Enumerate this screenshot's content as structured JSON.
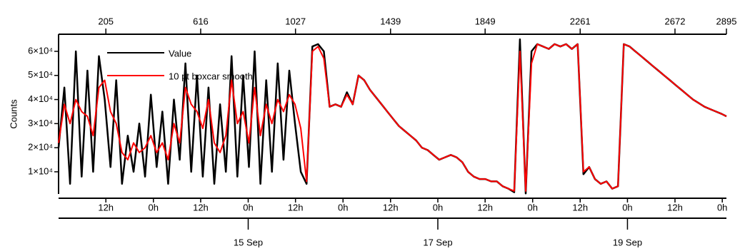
{
  "chart_data": {
    "type": "line",
    "y_label": "Counts",
    "legend": "top-left",
    "xlim": [
      0,
      2895
    ],
    "ylim": [
      800,
      67100
    ],
    "yticks": [
      {
        "value": 10000,
        "label": "1×10⁴"
      },
      {
        "value": 20000,
        "label": "2×10⁴"
      },
      {
        "value": 30000,
        "label": "3×10⁴"
      },
      {
        "value": 40000,
        "label": "4×10⁴"
      },
      {
        "value": 50000,
        "label": "5×10⁴"
      },
      {
        "value": 60000,
        "label": "6×10⁴"
      }
    ],
    "x2ticks": [
      205,
      616,
      1027,
      1439,
      1849,
      2261,
      2672,
      2895
    ],
    "xticks": [
      {
        "value": 205,
        "label": "12h"
      },
      {
        "value": 411,
        "label": "0h"
      },
      {
        "value": 616,
        "label": "12h"
      },
      {
        "value": 822,
        "label": "0h"
      },
      {
        "value": 1027,
        "label": "12h"
      },
      {
        "value": 1233,
        "label": "0h"
      },
      {
        "value": 1439,
        "label": "12h"
      },
      {
        "value": 1644,
        "label": "0h"
      },
      {
        "value": 1849,
        "label": "12h"
      },
      {
        "value": 2055,
        "label": "0h"
      },
      {
        "value": 2261,
        "label": "12h"
      },
      {
        "value": 2466,
        "label": "0h"
      },
      {
        "value": 2672,
        "label": "12h"
      },
      {
        "value": 2877,
        "label": "0h"
      }
    ],
    "date_ticks": [
      {
        "value": 822,
        "label": "15 Sep"
      },
      {
        "value": 1644,
        "label": "17 Sep"
      },
      {
        "value": 2466,
        "label": "19 Sep"
      }
    ],
    "x": [
      0,
      25,
      50,
      75,
      100,
      125,
      150,
      175,
      200,
      225,
      250,
      275,
      300,
      325,
      350,
      375,
      400,
      425,
      450,
      475,
      500,
      525,
      550,
      575,
      600,
      625,
      650,
      675,
      700,
      725,
      750,
      775,
      800,
      825,
      850,
      875,
      900,
      925,
      950,
      975,
      1000,
      1025,
      1050,
      1075,
      1100,
      1125,
      1150,
      1175,
      1200,
      1225,
      1250,
      1275,
      1300,
      1325,
      1350,
      1375,
      1400,
      1425,
      1450,
      1475,
      1500,
      1525,
      1550,
      1575,
      1600,
      1625,
      1650,
      1675,
      1700,
      1725,
      1750,
      1775,
      1800,
      1825,
      1850,
      1875,
      1900,
      1925,
      1950,
      1975,
      2000,
      2025,
      2050,
      2075,
      2100,
      2125,
      2150,
      2175,
      2200,
      2225,
      2250,
      2275,
      2300,
      2325,
      2350,
      2375,
      2400,
      2425,
      2450,
      2475,
      2500,
      2525,
      2550,
      2575,
      2600,
      2625,
      2650,
      2675,
      2700,
      2725,
      2750,
      2775,
      2800,
      2825,
      2850,
      2875,
      2895
    ],
    "series": [
      {
        "name": "Value",
        "color": "#000000",
        "values": [
          20000,
          45000,
          5000,
          60000,
          8000,
          52000,
          10000,
          58000,
          40000,
          12000,
          48000,
          5000,
          25000,
          10000,
          30000,
          8000,
          42000,
          12000,
          35000,
          5000,
          40000,
          15000,
          55000,
          10000,
          50000,
          8000,
          45000,
          5000,
          38000,
          10000,
          58000,
          8000,
          50000,
          12000,
          60000,
          5000,
          48000,
          10000,
          55000,
          15000,
          52000,
          30000,
          10000,
          5000,
          62000,
          63000,
          60000,
          37000,
          38000,
          37000,
          43000,
          38000,
          50000,
          48000,
          44000,
          41000,
          38000,
          35000,
          32000,
          29000,
          27000,
          25000,
          23000,
          20000,
          19000,
          17000,
          15000,
          16000,
          17000,
          16000,
          14000,
          10000,
          8000,
          7000,
          7000,
          6000,
          6000,
          4000,
          3000,
          1500,
          65000,
          1000,
          60000,
          63000,
          62000,
          61000,
          63000,
          62000,
          63000,
          61000,
          63000,
          9000,
          12000,
          7000,
          5000,
          6000,
          3000,
          4000,
          63000,
          62000,
          60000,
          58000,
          56000,
          54000,
          52000,
          50000,
          48000,
          46000,
          44000,
          42000,
          40000,
          38500,
          37000,
          36000,
          35000,
          34000,
          33000
        ]
      },
      {
        "name": "10 pt boxcar smooth",
        "color": "#ff0000",
        "values": [
          22000,
          38000,
          30000,
          40000,
          35000,
          33000,
          25000,
          45000,
          48000,
          35000,
          30000,
          18000,
          15000,
          22000,
          18000,
          20000,
          25000,
          18000,
          22000,
          15000,
          30000,
          22000,
          45000,
          38000,
          35000,
          28000,
          40000,
          22000,
          18000,
          25000,
          48000,
          30000,
          35000,
          22000,
          45000,
          25000,
          38000,
          30000,
          40000,
          35000,
          42000,
          38000,
          28000,
          6000,
          60000,
          62000,
          57000,
          37000,
          38000,
          37000,
          42000,
          38000,
          50000,
          48000,
          44000,
          41000,
          38000,
          35000,
          32000,
          29000,
          27000,
          25000,
          23000,
          20000,
          19000,
          17000,
          15000,
          16000,
          17000,
          16000,
          14000,
          10000,
          8000,
          7000,
          7000,
          6000,
          6000,
          4000,
          3000,
          2000,
          60000,
          2000,
          55000,
          63000,
          62000,
          61000,
          63000,
          62000,
          63000,
          61000,
          63000,
          10000,
          12000,
          7000,
          5000,
          6000,
          3000,
          4000,
          63000,
          62000,
          60000,
          58000,
          56000,
          54000,
          52000,
          50000,
          48000,
          46000,
          44000,
          42000,
          40000,
          38500,
          37000,
          36000,
          35000,
          34000,
          33000
        ]
      }
    ]
  }
}
